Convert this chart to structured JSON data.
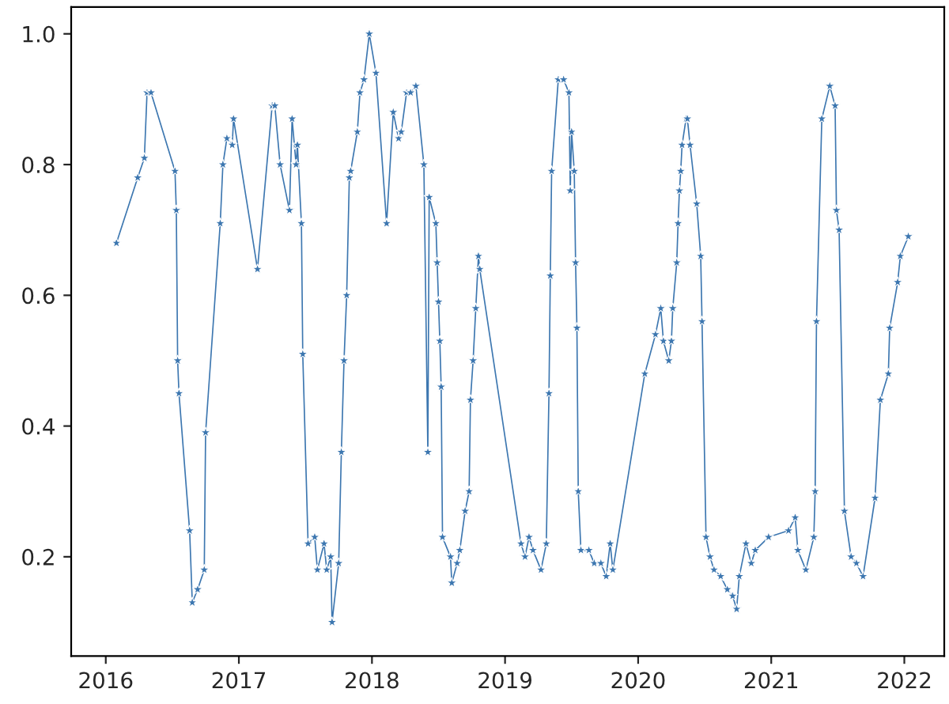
{
  "chart_data": {
    "type": "line",
    "x": [
      2016.08,
      2016.24,
      2016.29,
      2016.31,
      2016.34,
      2016.52,
      2016.53,
      2016.54,
      2016.55,
      2016.63,
      2016.65,
      2016.69,
      2016.74,
      2016.75,
      2016.86,
      2016.88,
      2016.91,
      2016.95,
      2016.96,
      2017.14,
      2017.25,
      2017.27,
      2017.31,
      2017.38,
      2017.4,
      2017.43,
      2017.44,
      2017.47,
      2017.48,
      2017.52,
      2017.57,
      2017.59,
      2017.64,
      2017.66,
      2017.69,
      2017.7,
      2017.75,
      2017.77,
      2017.79,
      2017.81,
      2017.83,
      2017.84,
      2017.89,
      2017.91,
      2017.94,
      2017.98,
      2018.03,
      2018.11,
      2018.16,
      2018.2,
      2018.22,
      2018.26,
      2018.29,
      2018.33,
      2018.39,
      2018.42,
      2018.43,
      2018.48,
      2018.49,
      2018.5,
      2018.51,
      2018.52,
      2018.53,
      2018.59,
      2018.6,
      2018.64,
      2018.66,
      2018.7,
      2018.73,
      2018.74,
      2018.76,
      2018.78,
      2018.8,
      2018.81,
      2019.12,
      2019.15,
      2019.18,
      2019.21,
      2019.27,
      2019.31,
      2019.33,
      2019.34,
      2019.35,
      2019.4,
      2019.44,
      2019.48,
      2019.49,
      2019.5,
      2019.52,
      2019.53,
      2019.54,
      2019.55,
      2019.57,
      2019.63,
      2019.67,
      2019.72,
      2019.76,
      2019.79,
      2019.81,
      2020.05,
      2020.13,
      2020.17,
      2020.19,
      2020.23,
      2020.25,
      2020.26,
      2020.29,
      2020.3,
      2020.31,
      2020.32,
      2020.33,
      2020.36,
      2020.37,
      2020.39,
      2020.44,
      2020.47,
      2020.48,
      2020.51,
      2020.54,
      2020.57,
      2020.62,
      2020.67,
      2020.71,
      2020.74,
      2020.76,
      2020.81,
      2020.85,
      2020.88,
      2020.98,
      2021.13,
      2021.18,
      2021.2,
      2021.26,
      2021.32,
      2021.33,
      2021.34,
      2021.38,
      2021.44,
      2021.48,
      2021.49,
      2021.51,
      2021.55,
      2021.6,
      2021.64,
      2021.69,
      2021.78,
      2021.82,
      2021.88,
      2021.89,
      2021.95,
      2021.97,
      2022.03
    ],
    "series": [
      {
        "color": "#3d77b0",
        "values": [
          0.68,
          0.78,
          0.81,
          0.91,
          0.91,
          0.79,
          0.73,
          0.5,
          0.45,
          0.24,
          0.13,
          0.15,
          0.18,
          0.39,
          0.71,
          0.8,
          0.84,
          0.83,
          0.87,
          0.64,
          0.89,
          0.89,
          0.8,
          0.73,
          0.87,
          0.8,
          0.83,
          0.71,
          0.51,
          0.22,
          0.23,
          0.18,
          0.22,
          0.18,
          0.2,
          0.1,
          0.19,
          0.36,
          0.5,
          0.6,
          0.78,
          0.79,
          0.85,
          0.91,
          0.93,
          1.0,
          0.94,
          0.71,
          0.88,
          0.84,
          0.85,
          0.91,
          0.91,
          0.92,
          0.8,
          0.36,
          0.75,
          0.71,
          0.65,
          0.59,
          0.53,
          0.46,
          0.23,
          0.2,
          0.16,
          0.19,
          0.21,
          0.27,
          0.3,
          0.44,
          0.5,
          0.58,
          0.66,
          0.64,
          0.22,
          0.2,
          0.23,
          0.21,
          0.18,
          0.22,
          0.45,
          0.63,
          0.79,
          0.93,
          0.93,
          0.91,
          0.76,
          0.85,
          0.79,
          0.65,
          0.55,
          0.3,
          0.21,
          0.21,
          0.19,
          0.19,
          0.17,
          0.22,
          0.18,
          0.48,
          0.54,
          0.58,
          0.53,
          0.5,
          0.53,
          0.58,
          0.65,
          0.71,
          0.76,
          0.79,
          0.83,
          0.87,
          0.87,
          0.83,
          0.74,
          0.66,
          0.56,
          0.23,
          0.2,
          0.18,
          0.17,
          0.15,
          0.14,
          0.12,
          0.17,
          0.22,
          0.19,
          0.21,
          0.23,
          0.24,
          0.26,
          0.21,
          0.18,
          0.23,
          0.3,
          0.56,
          0.87,
          0.92,
          0.89,
          0.73,
          0.7,
          0.27,
          0.2,
          0.19,
          0.17,
          0.29,
          0.44,
          0.48,
          0.55,
          0.62,
          0.66,
          0.69
        ]
      }
    ],
    "xlim": [
      2015.74,
      2022.3
    ],
    "ylim": [
      0.048,
      1.041
    ],
    "xticks": [
      2016,
      2017,
      2018,
      2019,
      2020,
      2021,
      2022
    ],
    "yticks": [
      0.2,
      0.4,
      0.6,
      0.8,
      {
        "value": 1,
        "label": "1.0"
      }
    ],
    "marker": "star",
    "grid": false
  }
}
